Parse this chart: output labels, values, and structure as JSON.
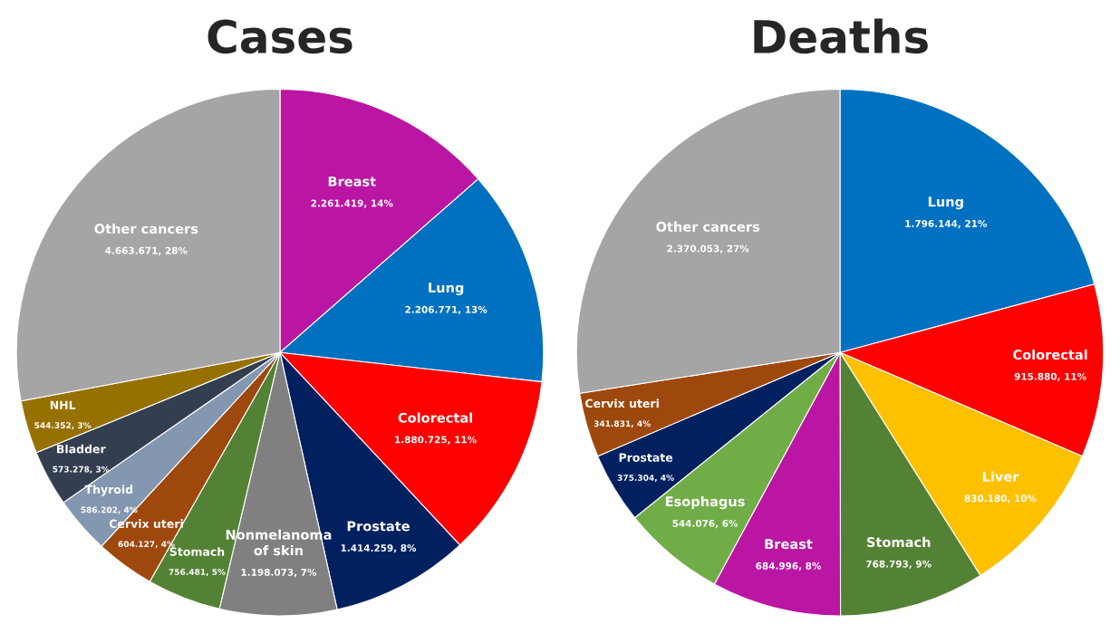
{
  "chart_data": [
    {
      "type": "pie",
      "title": "Cases",
      "categories": [
        "Breast",
        "Lung",
        "Colorectal",
        "Prostate",
        "Nonmelanoma\nof skin",
        "Stomach",
        "Cervix uteri",
        "Thyroid",
        "Bladder",
        "NHL",
        "Other cancers"
      ],
      "values": [
        2261419,
        2206771,
        1880725,
        1414259,
        1198073,
        756481,
        604127,
        586202,
        573278,
        544352,
        4663671
      ],
      "colors": [
        "#bb16a3",
        "#0070c0",
        "#ff0000",
        "#002060",
        "#808080",
        "#548235",
        "#9e480e",
        "#8497b0",
        "#333f50",
        "#977100",
        "#a5a5a5"
      ],
      "value_labels": [
        "2.261.419, 14%",
        "2.206.771, 13%",
        "1.880.725, 11%",
        "1.414.259, 8%",
        "1.198.073, 7%",
        "756.481, 5%",
        "604.127, 4%",
        "586.202, 4%",
        "573.278, 3%",
        "544.352, 3%",
        "4.663.671, 28%"
      ]
    },
    {
      "type": "pie",
      "title": "Deaths",
      "categories": [
        "Lung",
        "Colorectal",
        "Liver",
        "Stomach",
        "Breast",
        "Esophagus",
        "Prostate",
        "Cervix uteri",
        "Other cancers"
      ],
      "values": [
        1796144,
        915880,
        830180,
        768793,
        684996,
        544076,
        375304,
        341831,
        2370053
      ],
      "colors": [
        "#0070c0",
        "#ff0000",
        "#ffc000",
        "#548235",
        "#bb16a3",
        "#70ad47",
        "#002060",
        "#9e480e",
        "#a5a5a5"
      ],
      "value_labels": [
        "1.796.144, 21%",
        "915.880, 11%",
        "830.180, 10%",
        "768.793, 9%",
        "684.996, 8%",
        "544.076, 6%",
        "375.304, 4%",
        "341.831, 4%",
        "2.370.053, 27%"
      ]
    }
  ]
}
